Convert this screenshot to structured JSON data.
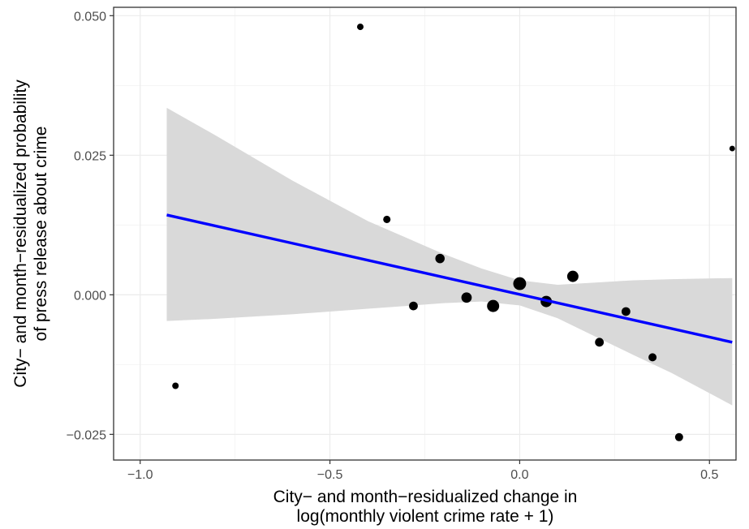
{
  "chart_data": {
    "type": "scatter",
    "title": "",
    "xlabel_lines": [
      "City− and month−residualized change in",
      "log(monthly violent crime rate + 1)"
    ],
    "ylabel_lines": [
      "City− and month−residualized probability",
      "of press release about crime"
    ],
    "xlim": [
      -1.07,
      0.57
    ],
    "ylim": [
      -0.0296,
      0.0515
    ],
    "x_ticks": [
      {
        "value": -1.0,
        "label": "−1.0"
      },
      {
        "value": -0.5,
        "label": "−0.5"
      },
      {
        "value": 0.0,
        "label": "0.0"
      },
      {
        "value": 0.5,
        "label": "0.5"
      }
    ],
    "y_ticks": [
      {
        "value": -0.025,
        "label": "−0.025"
      },
      {
        "value": 0.0,
        "label": "0.000"
      },
      {
        "value": 0.025,
        "label": "0.025"
      },
      {
        "value": 0.05,
        "label": "0.050"
      }
    ],
    "x_minor": [
      -0.75,
      -0.25,
      0.25
    ],
    "y_minor": [
      -0.0125,
      0.0125,
      0.0375
    ],
    "grid": true,
    "points": [
      {
        "x": -0.907,
        "y": -0.0163,
        "weight": 1
      },
      {
        "x": -0.42,
        "y": 0.048,
        "weight": 1
      },
      {
        "x": -0.35,
        "y": 0.0135,
        "weight": 1.5
      },
      {
        "x": -0.28,
        "y": -0.002,
        "weight": 2.5
      },
      {
        "x": -0.21,
        "y": 0.0065,
        "weight": 3
      },
      {
        "x": -0.14,
        "y": -0.0005,
        "weight": 4
      },
      {
        "x": -0.07,
        "y": -0.002,
        "weight": 6
      },
      {
        "x": 0.0,
        "y": 0.002,
        "weight": 7
      },
      {
        "x": 0.07,
        "y": -0.0012,
        "weight": 5
      },
      {
        "x": 0.14,
        "y": 0.0033,
        "weight": 5
      },
      {
        "x": 0.21,
        "y": -0.0085,
        "weight": 2.5
      },
      {
        "x": 0.28,
        "y": -0.003,
        "weight": 2.5
      },
      {
        "x": 0.35,
        "y": -0.0112,
        "weight": 2
      },
      {
        "x": 0.42,
        "y": -0.0255,
        "weight": 2
      },
      {
        "x": 0.56,
        "y": 0.0262,
        "weight": 0.6
      }
    ],
    "fit_line": {
      "x": [
        -0.93,
        0.56
      ],
      "y": [
        0.0143,
        -0.0085
      ],
      "color": "#0000ff"
    },
    "confidence_band": {
      "color": "#d9d9d9",
      "x": [
        -0.93,
        -0.8,
        -0.6,
        -0.4,
        -0.2,
        -0.1,
        0.0,
        0.1,
        0.2,
        0.3,
        0.4,
        0.56
      ],
      "upper": [
        0.0335,
        0.0285,
        0.0205,
        0.0132,
        0.0073,
        0.0047,
        0.0026,
        0.0018,
        0.0022,
        0.0026,
        0.0028,
        0.003
      ],
      "lower": [
        -0.0047,
        -0.0043,
        -0.0035,
        -0.0025,
        -0.0015,
        -0.0012,
        -0.0019,
        -0.0042,
        -0.0075,
        -0.0108,
        -0.014,
        -0.0198
      ]
    },
    "point_color": "#000000",
    "panel_border": "#333333"
  }
}
